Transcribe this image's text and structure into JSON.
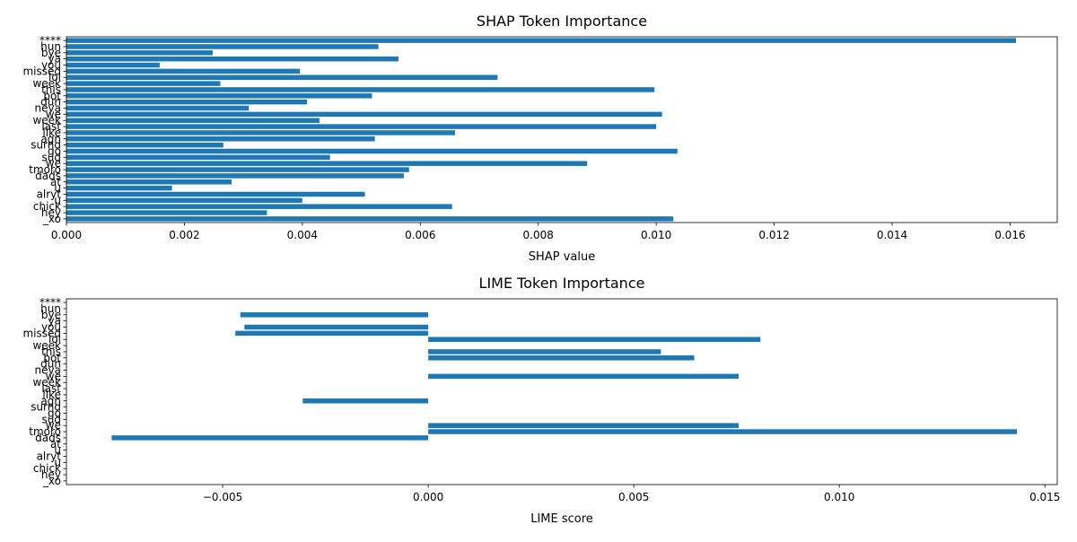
{
  "chart_data": [
    {
      "type": "bar",
      "orientation": "horizontal",
      "title": "SHAP Token Importance",
      "xlabel": "SHAP value",
      "ylabel": "",
      "xlim": [
        0,
        0.0168
      ],
      "xticks": [
        "0.000",
        "0.002",
        "0.004",
        "0.006",
        "0.008",
        "0.010",
        "0.012",
        "0.014",
        "0.016"
      ],
      "xtick_values": [
        0,
        0.002,
        0.004,
        0.006,
        0.008,
        0.01,
        0.012,
        0.014,
        0.016
      ],
      "grid": false,
      "color": "#1f77b4",
      "categories": [
        "****",
        "hun",
        "bye",
        "ya",
        "you",
        "missed",
        "lol",
        "week",
        "this",
        "bot",
        "dun",
        "neva",
        "we",
        "week",
        "last",
        "like",
        "agn",
        "surnd",
        "go",
        "sud",
        "we",
        "tmoro",
        "dads",
        "at",
        "u",
        "alryt",
        "u",
        "chick",
        "hey",
        "_xo"
      ],
      "values": [
        0.0161,
        0.00529,
        0.00248,
        0.00563,
        0.00158,
        0.00396,
        0.00731,
        0.00261,
        0.00997,
        0.00518,
        0.00408,
        0.00309,
        0.0101,
        0.00429,
        0.01,
        0.00659,
        0.00523,
        0.00266,
        0.01036,
        0.00447,
        0.00883,
        0.00581,
        0.00572,
        0.0028,
        0.00179,
        0.00506,
        0.004,
        0.00654,
        0.0034,
        0.01029
      ]
    },
    {
      "type": "bar",
      "orientation": "horizontal",
      "title": "LIME Token Importance",
      "xlabel": "LIME score",
      "ylabel": "",
      "xlim": [
        -0.0088,
        0.0153
      ],
      "xticks": [
        "−0.005",
        "0.000",
        "0.005",
        "0.010",
        "0.015"
      ],
      "xtick_values": [
        -0.005,
        0,
        0.005,
        0.01,
        0.015
      ],
      "grid": false,
      "color": "#1f77b4",
      "categories": [
        "****",
        "hun",
        "bye",
        "ya",
        "you",
        "missed",
        "lol",
        "week",
        "this",
        "bot",
        "dun",
        "neva",
        "we",
        "week",
        "last",
        "like",
        "agn",
        "surnd",
        "go",
        "sud",
        "we",
        "tmoro",
        "dads",
        "at",
        "u",
        "alryt",
        "u",
        "chick",
        "hey",
        "_xo"
      ],
      "values": [
        0,
        0,
        -0.00457,
        0,
        -0.00447,
        -0.00469,
        0.00808,
        0,
        0.00566,
        0.00647,
        0,
        0,
        0.00755,
        0,
        0,
        0,
        -0.00305,
        0,
        0,
        0,
        0.00755,
        0.01432,
        -0.0077,
        0,
        0,
        0,
        0,
        0,
        0,
        0
      ]
    }
  ]
}
